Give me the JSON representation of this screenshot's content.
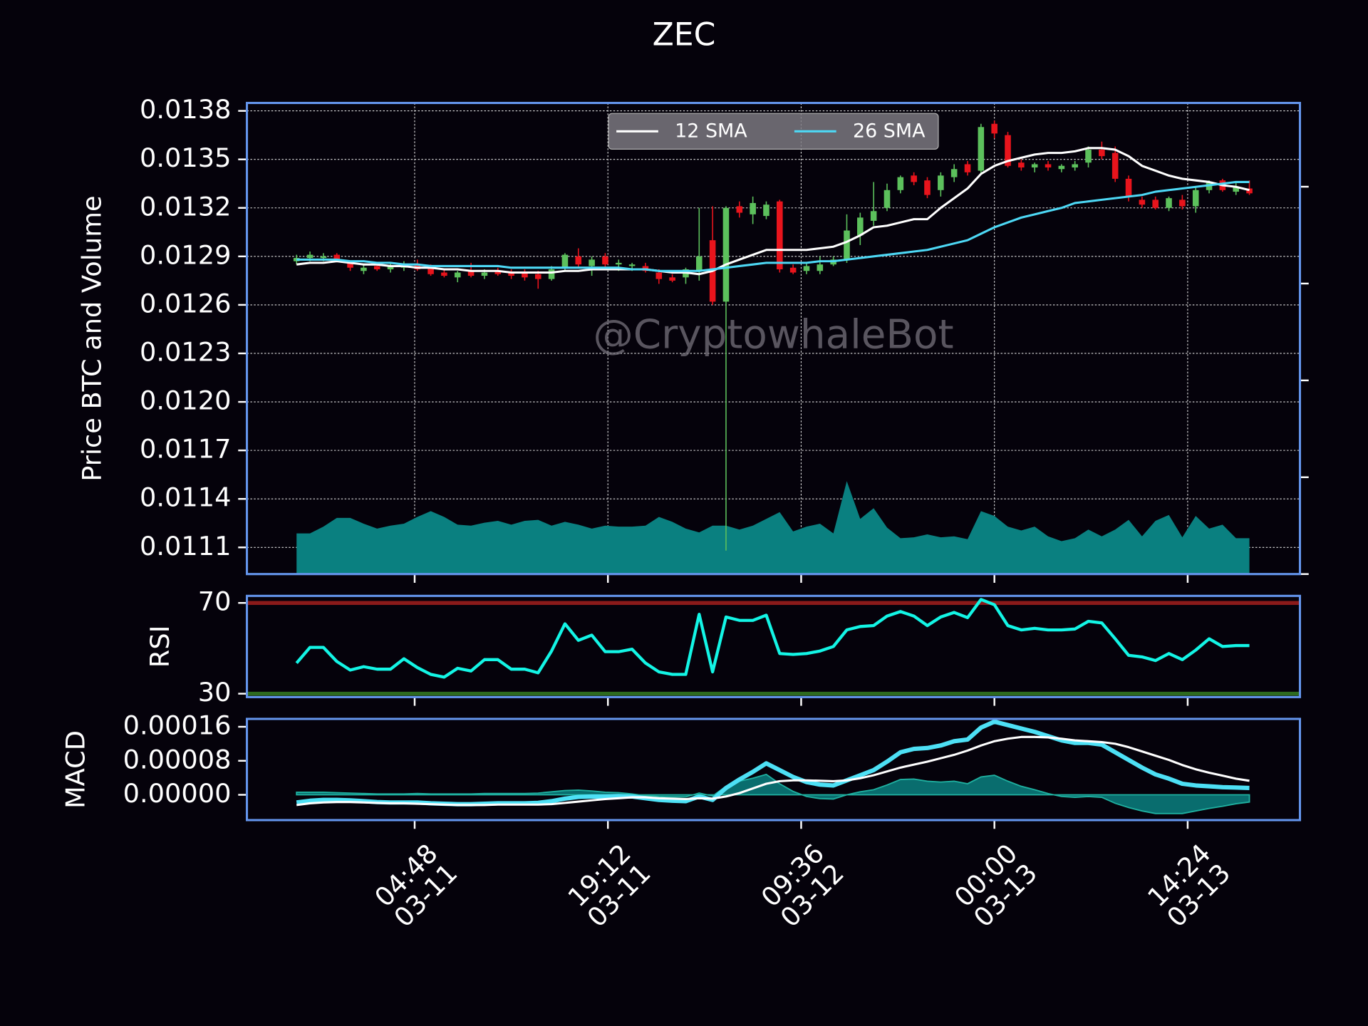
{
  "chart_data": [
    {
      "type": "candlestick",
      "title": "ZEC",
      "ylabel": "Price BTC and Volume",
      "annotation": "@CryptowhaleBot",
      "x": [
        "03-10 20:00",
        "03-10 21:00",
        "03-10 22:00",
        "03-10 23:00",
        "03-11 00:00",
        "03-11 01:00",
        "03-11 02:00",
        "03-11 03:00",
        "03-11 04:00",
        "03-11 05:00",
        "03-11 06:00",
        "03-11 07:00",
        "03-11 08:00",
        "03-11 09:00",
        "03-11 10:00",
        "03-11 11:00",
        "03-11 12:00",
        "03-11 13:00",
        "03-11 14:00",
        "03-11 15:00",
        "03-11 16:00",
        "03-11 17:00",
        "03-11 18:00",
        "03-11 19:00",
        "03-11 20:00",
        "03-11 21:00",
        "03-11 22:00",
        "03-11 23:00",
        "03-12 00:00",
        "03-12 01:00",
        "03-12 02:00",
        "03-12 03:00",
        "03-12 04:00",
        "03-12 05:00",
        "03-12 06:00",
        "03-12 07:00",
        "03-12 08:00",
        "03-12 09:00",
        "03-12 10:00",
        "03-12 11:00",
        "03-12 12:00",
        "03-12 13:00",
        "03-12 14:00",
        "03-12 15:00",
        "03-12 16:00",
        "03-12 17:00",
        "03-12 18:00",
        "03-12 19:00",
        "03-12 20:00",
        "03-12 21:00",
        "03-12 22:00",
        "03-12 23:00",
        "03-13 00:00",
        "03-13 01:00",
        "03-13 02:00",
        "03-13 03:00",
        "03-13 04:00",
        "03-13 05:00",
        "03-13 06:00",
        "03-13 07:00",
        "03-13 08:00",
        "03-13 09:00",
        "03-13 10:00",
        "03-13 11:00",
        "03-13 12:00",
        "03-13 13:00",
        "03-13 14:00",
        "03-13 15:00",
        "03-13 16:00",
        "03-13 17:00",
        "03-13 18:00",
        "03-13 19:00"
      ],
      "open": [
        0.01287,
        0.01289,
        0.01289,
        0.01291,
        0.01286,
        0.01281,
        0.01284,
        0.01282,
        0.01283,
        0.01285,
        0.01283,
        0.0128,
        0.01277,
        0.01281,
        0.01278,
        0.01281,
        0.0128,
        0.0128,
        0.01279,
        0.01276,
        0.01283,
        0.0129,
        0.01284,
        0.0129,
        0.01285,
        0.01284,
        0.01284,
        0.0128,
        0.01277,
        0.01277,
        0.01281,
        0.013,
        0.01262,
        0.01321,
        0.01316,
        0.01315,
        0.01324,
        0.01283,
        0.01281,
        0.01281,
        0.01285,
        0.01288,
        0.01303,
        0.01312,
        0.0132,
        0.01331,
        0.0134,
        0.01337,
        0.01331,
        0.01339,
        0.01347,
        0.01343,
        0.01372,
        0.01365,
        0.01348,
        0.01345,
        0.01347,
        0.01344,
        0.01345,
        0.01348,
        0.01356,
        0.01354,
        0.01338,
        0.01325,
        0.01325,
        0.0132,
        0.01325,
        0.01321,
        0.01331,
        0.01337,
        0.0133,
        0.01332
      ],
      "high": [
        0.01291,
        0.01293,
        0.01292,
        0.01292,
        0.01287,
        0.01285,
        0.01286,
        0.01286,
        0.01287,
        0.01288,
        0.01285,
        0.01282,
        0.01281,
        0.01286,
        0.01282,
        0.01283,
        0.01282,
        0.01282,
        0.01281,
        0.01284,
        0.01292,
        0.01295,
        0.0129,
        0.01292,
        0.01288,
        0.01286,
        0.01286,
        0.01282,
        0.01279,
        0.01283,
        0.0132,
        0.01321,
        0.01321,
        0.01324,
        0.01327,
        0.01324,
        0.01325,
        0.01285,
        0.01286,
        0.0129,
        0.0129,
        0.01316,
        0.01317,
        0.01336,
        0.01335,
        0.0134,
        0.01342,
        0.01339,
        0.01342,
        0.01347,
        0.01349,
        0.01372,
        0.01374,
        0.01367,
        0.0135,
        0.01348,
        0.01349,
        0.01347,
        0.01349,
        0.01358,
        0.01361,
        0.01358,
        0.0134,
        0.01327,
        0.01327,
        0.01327,
        0.01328,
        0.01333,
        0.01337,
        0.01338,
        0.01336,
        0.01337
      ],
      "low": [
        0.01285,
        0.01287,
        0.01287,
        0.01287,
        0.01281,
        0.01279,
        0.01281,
        0.0128,
        0.01281,
        0.01281,
        0.01278,
        0.01277,
        0.01274,
        0.01277,
        0.01276,
        0.01278,
        0.01276,
        0.01275,
        0.0127,
        0.01275,
        0.01281,
        0.01283,
        0.01278,
        0.01283,
        0.01281,
        0.01281,
        0.0128,
        0.01273,
        0.01274,
        0.01273,
        0.01275,
        0.0126,
        0.01108,
        0.01314,
        0.0131,
        0.01313,
        0.0128,
        0.01279,
        0.01279,
        0.01279,
        0.01284,
        0.01286,
        0.01297,
        0.01309,
        0.01318,
        0.01329,
        0.01334,
        0.01326,
        0.01327,
        0.01336,
        0.0134,
        0.01341,
        0.01363,
        0.01345,
        0.01343,
        0.01342,
        0.01343,
        0.01342,
        0.01343,
        0.01345,
        0.0135,
        0.01336,
        0.01324,
        0.0132,
        0.01319,
        0.01318,
        0.01319,
        0.01317,
        0.01329,
        0.0133,
        0.01328,
        0.01328
      ],
      "close": [
        0.01289,
        0.01291,
        0.0129,
        0.01288,
        0.01283,
        0.01283,
        0.01282,
        0.01284,
        0.01285,
        0.01282,
        0.01279,
        0.01278,
        0.0128,
        0.01278,
        0.0128,
        0.01279,
        0.01278,
        0.01277,
        0.01276,
        0.01282,
        0.01291,
        0.01285,
        0.01288,
        0.01285,
        0.01286,
        0.01285,
        0.01281,
        0.01276,
        0.01275,
        0.01282,
        0.0129,
        0.01262,
        0.0132,
        0.01317,
        0.01323,
        0.01322,
        0.01282,
        0.0128,
        0.01284,
        0.01285,
        0.01288,
        0.01306,
        0.01314,
        0.01318,
        0.01331,
        0.01339,
        0.01336,
        0.01328,
        0.0134,
        0.01344,
        0.01342,
        0.0137,
        0.01366,
        0.01346,
        0.01345,
        0.01347,
        0.01345,
        0.01346,
        0.01347,
        0.01356,
        0.01352,
        0.01338,
        0.01327,
        0.01322,
        0.0132,
        0.01326,
        0.01321,
        0.01331,
        0.01336,
        0.01331,
        0.01333,
        0.01329
      ],
      "up_color": "#5cc05c",
      "down_color": "#e8141c",
      "series": [
        {
          "name": "12 SMA",
          "color": "#ffffff",
          "values": [
            0.01285,
            0.01286,
            0.01286,
            0.01287,
            0.01286,
            0.01285,
            0.01285,
            0.01284,
            0.01284,
            0.01283,
            0.01283,
            0.01282,
            0.01282,
            0.01281,
            0.01281,
            0.01281,
            0.0128,
            0.0128,
            0.0128,
            0.0128,
            0.01281,
            0.01281,
            0.01282,
            0.01282,
            0.01282,
            0.01282,
            0.01282,
            0.01281,
            0.0128,
            0.0128,
            0.01279,
            0.01281,
            0.01285,
            0.01288,
            0.01291,
            0.01294,
            0.01294,
            0.01294,
            0.01294,
            0.01295,
            0.01296,
            0.01299,
            0.01303,
            0.01308,
            0.01309,
            0.01311,
            0.01313,
            0.01313,
            0.0132,
            0.01326,
            0.01332,
            0.01341,
            0.01346,
            0.01349,
            0.01351,
            0.01353,
            0.01354,
            0.01354,
            0.01355,
            0.01357,
            0.01357,
            0.01356,
            0.01352,
            0.01346,
            0.01343,
            0.0134,
            0.01338,
            0.01337,
            0.01336,
            0.01334,
            0.01333,
            0.01331
          ]
        },
        {
          "name": "26 SMA",
          "color": "#4dd8f5",
          "values": [
            0.01288,
            0.01288,
            0.01288,
            0.01288,
            0.01287,
            0.01287,
            0.01286,
            0.01286,
            0.01285,
            0.01285,
            0.01284,
            0.01284,
            0.01284,
            0.01284,
            0.01284,
            0.01284,
            0.01283,
            0.01283,
            0.01283,
            0.01283,
            0.01283,
            0.01283,
            0.01283,
            0.01283,
            0.01283,
            0.01282,
            0.01282,
            0.01281,
            0.01281,
            0.01281,
            0.01281,
            0.01282,
            0.01283,
            0.01284,
            0.01285,
            0.01286,
            0.01286,
            0.01286,
            0.01286,
            0.01287,
            0.01287,
            0.01288,
            0.01289,
            0.0129,
            0.01291,
            0.01292,
            0.01293,
            0.01294,
            0.01296,
            0.01298,
            0.013,
            0.01304,
            0.01308,
            0.01311,
            0.01314,
            0.01316,
            0.01318,
            0.0132,
            0.01323,
            0.01324,
            0.01325,
            0.01326,
            0.01327,
            0.01328,
            0.0133,
            0.01331,
            0.01332,
            0.01333,
            0.01334,
            0.01335,
            0.01336,
            0.01336
          ]
        }
      ],
      "volume": {
        "color": "#0a8080",
        "axis": "y2",
        "values": [
          0.42,
          0.42,
          0.49,
          0.58,
          0.58,
          0.52,
          0.47,
          0.5,
          0.52,
          0.59,
          0.65,
          0.59,
          0.51,
          0.5,
          0.53,
          0.55,
          0.51,
          0.55,
          0.56,
          0.5,
          0.54,
          0.51,
          0.47,
          0.5,
          0.49,
          0.49,
          0.5,
          0.59,
          0.54,
          0.47,
          0.43,
          0.5,
          0.5,
          0.46,
          0.5,
          0.57,
          0.64,
          0.44,
          0.49,
          0.52,
          0.42,
          0.96,
          0.57,
          0.68,
          0.48,
          0.37,
          0.38,
          0.41,
          0.38,
          0.39,
          0.36,
          0.65,
          0.6,
          0.49,
          0.45,
          0.49,
          0.39,
          0.34,
          0.37,
          0.46,
          0.39,
          0.46,
          0.56,
          0.39,
          0.55,
          0.61,
          0.38,
          0.6,
          0.47,
          0.51,
          0.37,
          0.37
        ]
      },
      "xlim": [
        "03-10 16:18",
        "03-13 22:46"
      ],
      "xticks": [
        {
          "value": "03-11 04:48",
          "label": [
            "04:48",
            "03-11"
          ]
        },
        {
          "value": "03-11 19:12",
          "label": [
            "19:12",
            "03-11"
          ]
        },
        {
          "value": "03-12 09:36",
          "label": [
            "09:36",
            "03-12"
          ]
        },
        {
          "value": "03-13 00:00",
          "label": [
            "00:00",
            "03-13"
          ]
        },
        {
          "value": "03-13 14:24",
          "label": [
            "14:24",
            "03-13"
          ]
        }
      ],
      "ylim": [
        0.010935,
        0.013849
      ],
      "yticks": [
        0.0111,
        0.0114,
        0.0117,
        {
          "value": 0.012,
          "label": "0.0120"
        },
        0.0123,
        0.0126,
        0.0129,
        0.0132,
        0.0135,
        0.0138
      ],
      "y2lim": [
        0,
        4.865
      ],
      "y2ticks": [
        0,
        1,
        2,
        3,
        4
      ],
      "grid": true,
      "legend": "upper center",
      "legend_columns": 2
    },
    {
      "type": "line",
      "ylabel": "RSI",
      "series": [
        {
          "color": "#13f5e5",
          "linewidth": 3.5,
          "values": [
            43.5,
            50.4,
            50.4,
            44.2,
            40.4,
            41.9,
            40.8,
            40.8,
            45.4,
            41.5,
            38.5,
            37.3,
            41.2,
            40,
            45,
            45,
            40.8,
            40.8,
            39.2,
            48.8,
            60.8,
            53.5,
            55.8,
            48.5,
            48.5,
            49.6,
            43.5,
            39.6,
            38.5,
            38.5,
            65,
            39.6,
            63.8,
            62.3,
            62.3,
            64.6,
            47.7,
            47.3,
            47.7,
            48.8,
            50.8,
            58.1,
            59.6,
            60,
            64.2,
            66.2,
            64.2,
            60,
            63.8,
            65.8,
            63.5,
            71.5,
            69.2,
            60,
            58.1,
            58.8,
            58.1,
            58.1,
            58.5,
            61.9,
            61.2,
            54.2,
            46.9,
            46.2,
            44.6,
            47.7,
            45,
            49.2,
            54.2,
            50.8,
            51.2,
            51.2
          ]
        }
      ],
      "hlines": [
        {
          "value": 70,
          "color": "#8b1a1a"
        },
        {
          "value": 30,
          "color": "#2d6a1f"
        }
      ],
      "ylim": [
        28.5,
        73.1
      ],
      "yticks": [
        30,
        70
      ],
      "grid": false
    },
    {
      "type": "line",
      "ylabel": "MACD",
      "histogram": {
        "color": "#0a8080",
        "values": [
          6e-06,
          6e-06,
          6e-06,
          5e-06,
          4e-06,
          3e-06,
          2e-06,
          2e-06,
          2e-06,
          3e-06,
          2e-06,
          2e-06,
          2e-06,
          2e-06,
          3e-06,
          3e-06,
          3e-06,
          3e-06,
          4e-06,
          7e-06,
          1e-05,
          1.1e-05,
          9e-06,
          6e-06,
          5e-06,
          2e-06,
          -2e-06,
          -4e-06,
          -5e-06,
          -5e-06,
          4e-06,
          -3e-06,
          2e-05,
          3.2e-05,
          3.9e-05,
          4.8e-05,
          2.6e-05,
          8e-06,
          -4e-06,
          -9e-06,
          -1e-05,
          0,
          7e-06,
          1.2e-05,
          2.3e-05,
          3.6e-05,
          3.7e-05,
          3.2e-05,
          3e-05,
          3.2e-05,
          2.6e-05,
          4.2e-05,
          4.6e-05,
          3.2e-05,
          2e-05,
          1.2e-05,
          3e-06,
          -4e-06,
          -6e-06,
          -4e-06,
          -6e-06,
          -2e-05,
          -3e-05,
          -3.8e-05,
          -4.4e-05,
          -4.4e-05,
          -4.4e-05,
          -3.8e-05,
          -3.2e-05,
          -2.7e-05,
          -2.1e-05,
          -1.7e-05
        ]
      },
      "series": [
        {
          "color": "#4de0f5",
          "linewidth": 5,
          "values": [
            -1.8e-05,
            -1.4e-05,
            -1.2e-05,
            -1.2e-05,
            -1.3e-05,
            -1.5e-05,
            -1.7e-05,
            -1.8e-05,
            -1.8e-05,
            -1.8e-05,
            -2e-05,
            -2.1e-05,
            -2.2e-05,
            -2.2e-05,
            -2.1e-05,
            -2e-05,
            -2e-05,
            -2e-05,
            -1.9e-05,
            -1.5e-05,
            -9e-06,
            -5e-06,
            -4e-06,
            -4e-06,
            -3e-06,
            -4e-06,
            -8e-06,
            -1.2e-05,
            -1.4e-05,
            -1.5e-05,
            -4e-06,
            -1.2e-05,
            1.6e-05,
            3.6e-05,
            5.4e-05,
            7.4e-05,
            5.8e-05,
            4.2e-05,
            3e-05,
            2.4e-05,
            2.2e-05,
            3.4e-05,
            4.6e-05,
            5.8e-05,
            7.8e-05,
            0.0001,
            0.000108,
            0.00011,
            0.000116,
            0.000126,
            0.00013,
            0.000158,
            0.000172,
            0.000164,
            0.000156,
            0.000148,
            0.000138,
            0.000128,
            0.000122,
            0.000122,
            0.000118,
            0.0001,
            8.2e-05,
            6.4e-05,
            4.8e-05,
            3.8e-05,
            2.6e-05,
            2.2e-05,
            2e-05,
            1.8e-05,
            1.7e-05,
            1.6e-05
          ]
        },
        {
          "color": "#ffffff",
          "linewidth": 2.5,
          "values": [
            -2.4e-05,
            -2e-05,
            -1.8e-05,
            -1.7e-05,
            -1.7e-05,
            -1.8e-05,
            -1.9e-05,
            -2e-05,
            -2e-05,
            -2.1e-05,
            -2.2e-05,
            -2.3e-05,
            -2.4e-05,
            -2.4e-05,
            -2.4e-05,
            -2.3e-05,
            -2.3e-05,
            -2.3e-05,
            -2.3e-05,
            -2.2e-05,
            -1.9e-05,
            -1.6e-05,
            -1.3e-05,
            -1e-05,
            -8e-06,
            -6e-06,
            -6e-06,
            -8e-06,
            -9e-06,
            -1e-05,
            -8e-06,
            -9e-06,
            -4e-06,
            4e-06,
            1.5e-05,
            2.6e-05,
            3.2e-05,
            3.4e-05,
            3.4e-05,
            3.3e-05,
            3.2e-05,
            3.4e-05,
            3.9e-05,
            4.6e-05,
            5.5e-05,
            6.4e-05,
            7.1e-05,
            7.8e-05,
            8.6e-05,
            9.4e-05,
            0.000104,
            0.000116,
            0.000126,
            0.000132,
            0.000136,
            0.000136,
            0.000135,
            0.000132,
            0.000128,
            0.000126,
            0.000124,
            0.00012,
            0.000112,
            0.000102,
            9.2e-05,
            8.2e-05,
            7e-05,
            6e-05,
            5.2e-05,
            4.5e-05,
            3.8e-05,
            3.3e-05
          ]
        }
      ],
      "ylim": [
        -5.95e-05,
        0.0001785
      ],
      "yticks": [
        {
          "value": 0,
          "label": "0.00000"
        },
        8e-05,
        0.00016
      ],
      "grid": false
    }
  ]
}
